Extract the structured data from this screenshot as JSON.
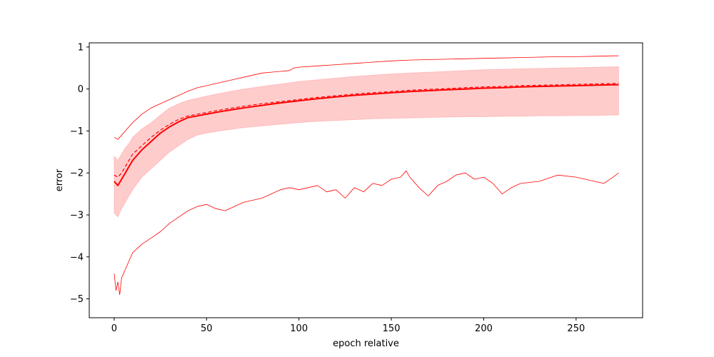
{
  "chart_data": {
    "type": "line",
    "title": "",
    "xlabel": "epoch relative",
    "ylabel": "error",
    "xlim": [
      -13.5,
      286
    ],
    "ylim": [
      -5.45,
      1.1
    ],
    "grid": false,
    "legend": "none",
    "x_ticks": [
      0,
      50,
      100,
      150,
      200,
      250
    ],
    "x_tick_labels": [
      "0",
      "50",
      "100",
      "150",
      "200",
      "250"
    ],
    "y_ticks": [
      1,
      0,
      -1,
      -2,
      -3,
      -4,
      -5
    ],
    "y_tick_labels": [
      "1",
      "0",
      "−1",
      "−2",
      "−3",
      "−4",
      "−5"
    ],
    "colors": {
      "line": "#ff0000",
      "band": "#ff0000",
      "band_opacity": 0.2
    },
    "series": [
      {
        "role": "upper",
        "style": "solid-thin",
        "x": [
          0,
          2,
          4,
          6,
          8,
          10,
          15,
          20,
          25,
          30,
          35,
          40,
          45,
          50,
          55,
          60,
          65,
          70,
          75,
          80,
          85,
          90,
          95,
          97,
          100,
          110,
          120,
          130,
          140,
          150,
          160,
          170,
          180,
          190,
          200,
          210,
          220,
          230,
          240,
          250,
          260,
          270,
          273
        ],
        "y": [
          -1.15,
          -1.2,
          -1.1,
          -1.0,
          -0.9,
          -0.8,
          -0.6,
          -0.45,
          -0.35,
          -0.25,
          -0.15,
          -0.05,
          0.03,
          0.08,
          0.13,
          0.18,
          0.23,
          0.28,
          0.33,
          0.38,
          0.4,
          0.42,
          0.44,
          0.5,
          0.52,
          0.55,
          0.58,
          0.61,
          0.64,
          0.67,
          0.69,
          0.7,
          0.71,
          0.72,
          0.73,
          0.74,
          0.75,
          0.76,
          0.77,
          0.77,
          0.78,
          0.79,
          0.79
        ]
      },
      {
        "role": "mean",
        "style": "solid",
        "x": [
          0,
          2,
          4,
          6,
          8,
          10,
          15,
          20,
          25,
          30,
          35,
          40,
          45,
          50,
          60,
          70,
          80,
          90,
          100,
          110,
          120,
          130,
          140,
          150,
          160,
          170,
          180,
          190,
          200,
          210,
          220,
          230,
          240,
          250,
          260,
          270,
          273
        ],
        "y": [
          -2.2,
          -2.3,
          -2.15,
          -2.0,
          -1.85,
          -1.7,
          -1.45,
          -1.25,
          -1.05,
          -0.9,
          -0.78,
          -0.68,
          -0.64,
          -0.6,
          -0.52,
          -0.45,
          -0.39,
          -0.33,
          -0.28,
          -0.23,
          -0.19,
          -0.15,
          -0.12,
          -0.09,
          -0.06,
          -0.04,
          -0.02,
          0.0,
          0.02,
          0.03,
          0.05,
          0.06,
          0.07,
          0.08,
          0.09,
          0.1,
          0.1
        ]
      },
      {
        "role": "median",
        "style": "dashed",
        "x": [
          0,
          2,
          4,
          6,
          8,
          10,
          15,
          20,
          25,
          30,
          35,
          40,
          45,
          50,
          60,
          70,
          80,
          90,
          100,
          110,
          120,
          130,
          140,
          150,
          160,
          170,
          180,
          190,
          200,
          210,
          220,
          230,
          240,
          250,
          260,
          270,
          273
        ],
        "y": [
          -2.05,
          -2.1,
          -2.0,
          -1.85,
          -1.7,
          -1.55,
          -1.35,
          -1.15,
          -0.98,
          -0.84,
          -0.72,
          -0.64,
          -0.6,
          -0.56,
          -0.48,
          -0.41,
          -0.35,
          -0.3,
          -0.25,
          -0.2,
          -0.16,
          -0.12,
          -0.09,
          -0.06,
          -0.03,
          -0.01,
          0.01,
          0.03,
          0.05,
          0.06,
          0.08,
          0.09,
          0.1,
          0.11,
          0.12,
          0.13,
          0.13
        ]
      },
      {
        "role": "lower",
        "style": "solid-thin-noisy",
        "x": [
          0,
          1,
          2,
          3,
          4,
          6,
          8,
          10,
          15,
          20,
          25,
          30,
          35,
          40,
          45,
          50,
          55,
          60,
          70,
          80,
          85,
          90,
          95,
          100,
          110,
          115,
          120,
          125,
          130,
          135,
          140,
          145,
          150,
          155,
          158,
          160,
          165,
          170,
          175,
          180,
          185,
          190,
          195,
          200,
          205,
          210,
          215,
          220,
          230,
          240,
          250,
          260,
          265,
          270,
          273
        ],
        "y": [
          -4.4,
          -4.8,
          -4.6,
          -4.9,
          -4.5,
          -4.3,
          -4.1,
          -3.9,
          -3.7,
          -3.55,
          -3.4,
          -3.2,
          -3.05,
          -2.9,
          -2.8,
          -2.75,
          -2.85,
          -2.9,
          -2.7,
          -2.6,
          -2.5,
          -2.4,
          -2.35,
          -2.4,
          -2.3,
          -2.45,
          -2.4,
          -2.6,
          -2.35,
          -2.45,
          -2.25,
          -2.3,
          -2.15,
          -2.1,
          -1.95,
          -2.1,
          -2.35,
          -2.55,
          -2.3,
          -2.2,
          -2.05,
          -2.0,
          -2.15,
          -2.1,
          -2.25,
          -2.5,
          -2.35,
          -2.25,
          -2.2,
          -2.05,
          -2.1,
          -2.2,
          -2.25,
          -2.1,
          -2.0
        ]
      }
    ],
    "band": {
      "x": [
        0,
        2,
        4,
        6,
        8,
        10,
        15,
        20,
        25,
        30,
        35,
        40,
        45,
        50,
        60,
        70,
        80,
        90,
        100,
        110,
        120,
        130,
        140,
        150,
        160,
        170,
        180,
        190,
        200,
        210,
        220,
        230,
        240,
        250,
        260,
        270,
        273
      ],
      "upper": [
        -1.6,
        -1.7,
        -1.55,
        -1.4,
        -1.3,
        -1.15,
        -0.95,
        -0.8,
        -0.62,
        -0.45,
        -0.35,
        -0.27,
        -0.22,
        -0.17,
        -0.08,
        0.0,
        0.06,
        0.12,
        0.18,
        0.22,
        0.26,
        0.3,
        0.33,
        0.36,
        0.38,
        0.4,
        0.42,
        0.44,
        0.46,
        0.47,
        0.48,
        0.49,
        0.5,
        0.51,
        0.52,
        0.53,
        0.53
      ],
      "lower": [
        -2.95,
        -3.05,
        -2.85,
        -2.7,
        -2.55,
        -2.4,
        -2.1,
        -1.9,
        -1.7,
        -1.5,
        -1.35,
        -1.2,
        -1.1,
        -1.05,
        -0.98,
        -0.92,
        -0.88,
        -0.84,
        -0.8,
        -0.77,
        -0.75,
        -0.73,
        -0.71,
        -0.7,
        -0.69,
        -0.68,
        -0.67,
        -0.66,
        -0.66,
        -0.65,
        -0.65,
        -0.64,
        -0.64,
        -0.63,
        -0.63,
        -0.62,
        -0.62
      ]
    }
  }
}
